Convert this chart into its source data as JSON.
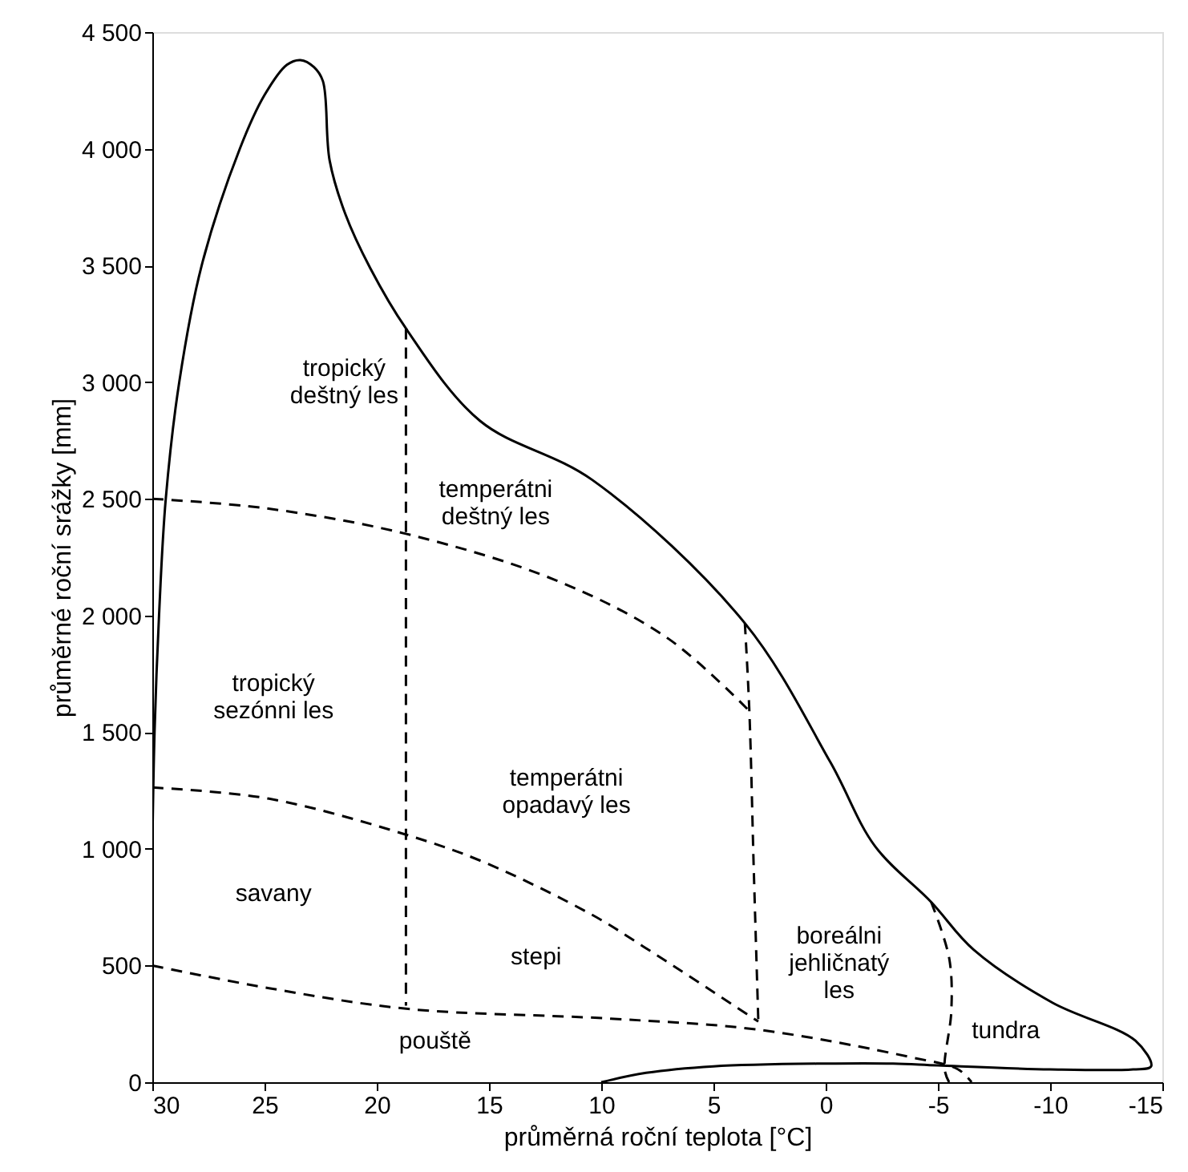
{
  "chart_data": {
    "type": "line",
    "xlabel": "průměrná roční teplota [°C]",
    "ylabel": "průměrné roční srážky [mm]",
    "xlim": [
      30,
      -15
    ],
    "ylim": [
      0,
      4500
    ],
    "xticks": [
      30,
      25,
      20,
      15,
      10,
      5,
      0,
      -5,
      -10,
      -15
    ],
    "yticks": [
      {
        "value": 0,
        "label": "0"
      },
      {
        "value": 500,
        "label": "500"
      },
      {
        "value": 1000,
        "label": "1 000"
      },
      {
        "value": 1500,
        "label": "1 500"
      },
      {
        "value": 2000,
        "label": "2 000"
      },
      {
        "value": 2500,
        "label": "2 500"
      },
      {
        "value": 3000,
        "label": "3 000"
      },
      {
        "value": 3500,
        "label": "3 500"
      },
      {
        "value": 4000,
        "label": "4 000"
      },
      {
        "value": 4500,
        "label": "4 500"
      }
    ],
    "grid": false,
    "series": [
      {
        "color": "#000000",
        "line_style": "solid",
        "x": [
          30,
          29.9,
          29.7,
          29.4,
          28.8,
          27.8,
          26.1,
          25,
          24,
          23.4,
          22.8,
          22.4,
          22.1,
          21.4,
          20.3,
          18.7,
          15.4,
          10.4,
          3.6,
          -0.2,
          -2.2,
          -4.7,
          -6.6,
          -10.1,
          -13.8,
          -14.5,
          -13.7,
          -10,
          -5,
          -3,
          0,
          5,
          8,
          10
        ],
        "values": [
          1000,
          1500,
          2000,
          2500,
          3000,
          3500,
          4000,
          4230,
          4360,
          4380,
          4350,
          4290,
          3950,
          3720,
          3490,
          3230,
          2834,
          2581,
          1967,
          1373,
          1011,
          772,
          567,
          341,
          178,
          68,
          55,
          55,
          72,
          80,
          80,
          68,
          40,
          0
        ]
      },
      {
        "color": "#000000",
        "line_style": "dashed",
        "x": [
          18.7,
          18.7,
          18.7
        ],
        "values": [
          3230,
          1800,
          328
        ]
      },
      {
        "color": "#000000",
        "line_style": "dashed",
        "x": [
          30,
          25,
          18.7,
          12,
          7,
          3.4
        ],
        "values": [
          2500,
          2460,
          2350,
          2150,
          1900,
          1591
        ]
      },
      {
        "color": "#000000",
        "line_style": "dashed",
        "x": [
          3.6,
          3.4,
          3.2,
          3.0
        ],
        "values": [
          1967,
          1591,
          900,
          260
        ]
      },
      {
        "color": "#000000",
        "line_style": "dashed",
        "x": [
          30,
          24.8,
          18.6,
          15.2,
          10.4,
          8.1,
          3.0
        ],
        "values": [
          1263,
          1215,
          1058,
          942,
          717,
          580,
          260
        ]
      },
      {
        "color": "#000000",
        "line_style": "dashed",
        "x": [
          30,
          24.8,
          18.6,
          9.7,
          3.0,
          -3.7,
          -5.9,
          -6.5
        ],
        "values": [
          500,
          403,
          314,
          273,
          225,
          109,
          55,
          0
        ]
      },
      {
        "color": "#000000",
        "line_style": "dashed",
        "x": [
          -4.7,
          -5.5,
          -5.6,
          -5.3,
          -5.5
        ],
        "values": [
          772,
          533,
          307,
          55,
          0
        ]
      }
    ],
    "annotations": [
      "tropický\ndeštný les",
      "temperátni\ndeštný les",
      "tropický\nsezónni les",
      "temperátni\nopadavý les",
      "savany",
      "stepi",
      "pouště",
      "boreálni\njehličnatý\nles",
      "tundra"
    ]
  }
}
